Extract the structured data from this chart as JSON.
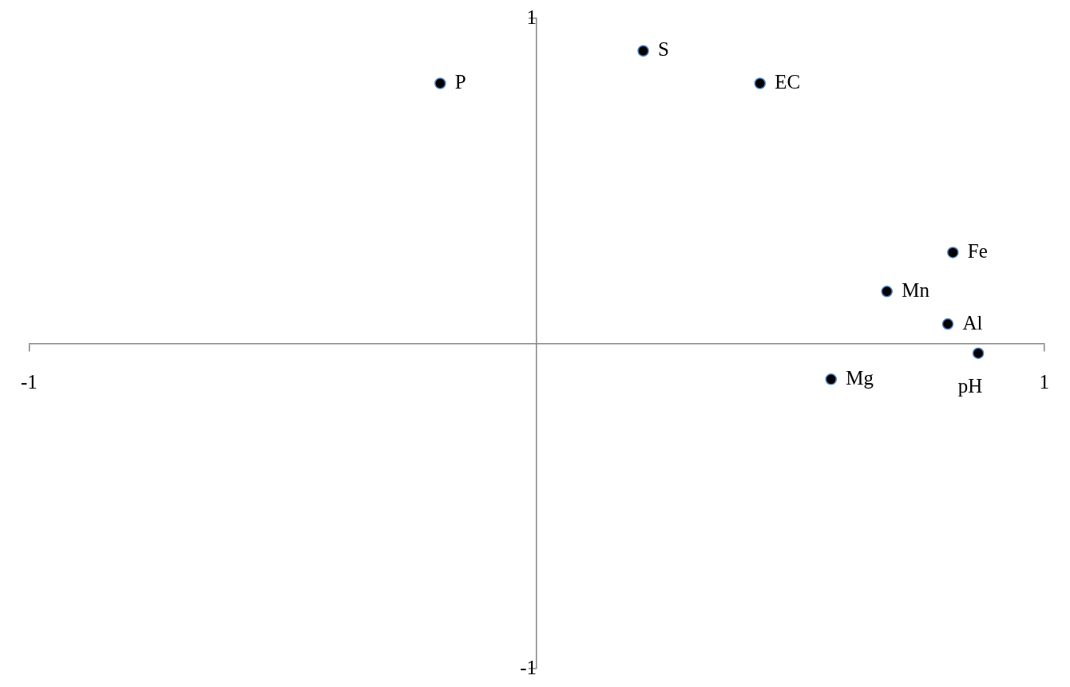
{
  "chart_data": {
    "type": "scatter",
    "series": [
      {
        "name": "P",
        "color": "#000000",
        "x": [
          -0.19
        ],
        "values": [
          0.8
        ]
      },
      {
        "name": "S",
        "color": "#000000",
        "x": [
          0.21
        ],
        "values": [
          0.9
        ]
      },
      {
        "name": "EC",
        "color": "#000000",
        "x": [
          0.44
        ],
        "values": [
          0.8
        ]
      },
      {
        "name": "Fe",
        "color": "#000000",
        "x": [
          0.82
        ],
        "values": [
          0.28
        ]
      },
      {
        "name": "Mn",
        "color": "#000000",
        "x": [
          0.69
        ],
        "values": [
          0.16
        ]
      },
      {
        "name": "Al",
        "color": "#000000",
        "x": [
          0.81
        ],
        "values": [
          0.06
        ]
      },
      {
        "name": "pH",
        "color": "#000000",
        "x": [
          0.87
        ],
        "values": [
          -0.03
        ]
      },
      {
        "name": "Mg",
        "color": "#000000",
        "x": [
          0.58
        ],
        "values": [
          -0.11
        ]
      }
    ],
    "xlim": [
      -1,
      1
    ],
    "ylim": [
      -1,
      1
    ],
    "xticks": [
      -1,
      1
    ],
    "yticks": [
      -1,
      1
    ],
    "grid": false,
    "marker": "circle"
  }
}
